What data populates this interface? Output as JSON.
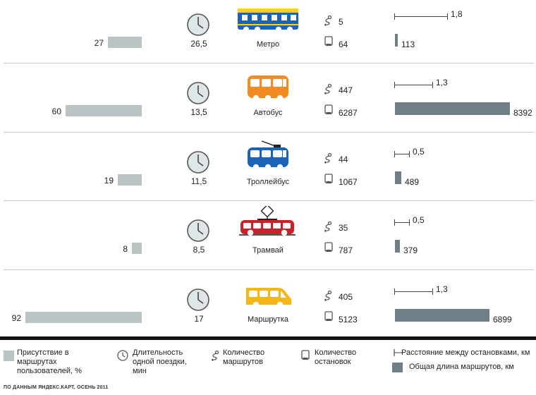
{
  "rows": [
    {
      "id": "metro",
      "name": "Метро",
      "presence": 27,
      "presence_label": "27",
      "duration": "26,5",
      "routes": "5",
      "stops": "64",
      "distance": 1.8,
      "distance_label": "1,8",
      "length": 113,
      "length_label": "113",
      "color": "#1a63b6"
    },
    {
      "id": "bus",
      "name": "Автобус",
      "presence": 60,
      "presence_label": "60",
      "duration": "13,5",
      "routes": "447",
      "stops": "6287",
      "distance": 1.3,
      "distance_label": "1,3",
      "length": 8392,
      "length_label": "8392",
      "color": "#f28c22"
    },
    {
      "id": "trolleybus",
      "name": "Троллейбус",
      "presence": 19,
      "presence_label": "19",
      "duration": "11,5",
      "routes": "44",
      "stops": "1067",
      "distance": 0.5,
      "distance_label": "0,5",
      "length": 489,
      "length_label": "489",
      "color": "#1a63b6"
    },
    {
      "id": "tram",
      "name": "Трамвай",
      "presence": 8,
      "presence_label": "8",
      "duration": "8,5",
      "routes": "35",
      "stops": "787",
      "distance": 0.5,
      "distance_label": "0,5",
      "length": 379,
      "length_label": "379",
      "color": "#c8222a"
    },
    {
      "id": "marshrutka",
      "name": "Маршрутка",
      "presence": 92,
      "presence_label": "92",
      "duration": "17",
      "routes": "405",
      "stops": "5123",
      "distance": 1.3,
      "distance_label": "1,3",
      "length": 6899,
      "length_label": "6899",
      "color": "#f5b617"
    }
  ],
  "legend": {
    "presence": "Присутствие в маршрутах пользователей, %",
    "duration": "Длительность одной поездки, мин",
    "routes": "Количество маршрутов",
    "stops": "Количество остановок",
    "distance": "Расстояние между остановками, км",
    "length": "Общая длина маршрутов, км"
  },
  "source": "ПО ДАННЫМ ЯНДЕКС.КАРТ, ОСЕНЬ 2011",
  "colors": {
    "presence_bar": "#bac4c4",
    "length_bar": "#6f7f87",
    "clock_face": "#dfe6e8"
  },
  "chart_data": {
    "type": "bar",
    "categories": [
      "Метро",
      "Автобус",
      "Троллейбус",
      "Трамвай",
      "Маршрутка"
    ],
    "series": [
      {
        "name": "Присутствие в маршрутах пользователей, %",
        "values": [
          27,
          60,
          19,
          8,
          92
        ]
      },
      {
        "name": "Длительность одной поездки, мин",
        "values": [
          26.5,
          13.5,
          11.5,
          8.5,
          17
        ]
      },
      {
        "name": "Количество маршрутов",
        "values": [
          5,
          447,
          44,
          35,
          405
        ]
      },
      {
        "name": "Количество остановок",
        "values": [
          64,
          6287,
          1067,
          787,
          5123
        ]
      },
      {
        "name": "Расстояние между остановками, км",
        "values": [
          1.8,
          1.3,
          0.5,
          0.5,
          1.3
        ]
      },
      {
        "name": "Общая длина маршрутов, км",
        "values": [
          113,
          8392,
          489,
          379,
          6899
        ]
      }
    ]
  }
}
